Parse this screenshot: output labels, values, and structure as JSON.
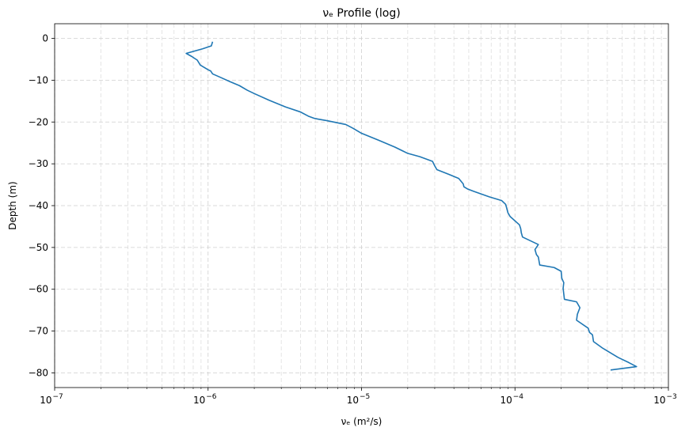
{
  "chart_data": {
    "type": "line",
    "title": "νₑ Profile (log)",
    "xlabel": "νₑ (m²/s)",
    "ylabel": "Depth (m)",
    "x_scale": "log",
    "xlim": [
      1e-07,
      0.001
    ],
    "ylim": [
      -83.5,
      3.5
    ],
    "x_ticks": [
      1e-07,
      1e-06,
      1e-05,
      0.0001,
      0.001
    ],
    "x_tick_labels": [
      {
        "base": "10",
        "exp": "−7"
      },
      {
        "base": "10",
        "exp": "−6"
      },
      {
        "base": "10",
        "exp": "−5"
      },
      {
        "base": "10",
        "exp": "−4"
      },
      {
        "base": "10",
        "exp": "−3"
      }
    ],
    "y_ticks": [
      0,
      -10,
      -20,
      -30,
      -40,
      -50,
      -60,
      -70,
      -80
    ],
    "y_tick_labels": [
      "0",
      "−10",
      "−20",
      "−30",
      "−40",
      "−50",
      "−60",
      "−70",
      "−80"
    ],
    "grid": true,
    "line_color": "#1f77b4",
    "series": [
      {
        "x": [
          1.07e-06,
          1.05e-06,
          9.2e-07,
          7.2e-07,
          7.8e-07,
          8.5e-07,
          8.9e-07,
          1e-06,
          1.04e-06,
          1.07e-06,
          1.2e-06,
          1.38e-06,
          1.6e-06,
          1.8e-06,
          2e-06,
          2.5e-06,
          3.2e-06,
          4e-06,
          4.5e-06,
          4.9e-06,
          5.2e-06,
          6e-06,
          7.9e-06,
          8.8e-06,
          1e-05,
          1.3e-05,
          1.65e-05,
          2e-05,
          2.4e-05,
          2.9e-05,
          3e-05,
          3.1e-05,
          3.7e-05,
          4.3e-05,
          4.6e-05,
          4.65e-05,
          4.9e-05,
          5.4e-05,
          6.8e-05,
          8.2e-05,
          8.7e-05,
          9e-05,
          9.3e-05,
          0.000107,
          0.000109,
          0.00011,
          0.000112,
          0.000142,
          0.000135,
          0.000138,
          0.000142,
          0.000145,
          0.00018,
          0.0002,
          0.000202,
          0.000208,
          0.000206,
          0.00021,
          0.000252,
          0.000265,
          0.000255,
          0.000252,
          0.0003,
          0.000306,
          0.00032,
          0.000325,
          0.00037,
          0.00047,
          0.00055,
          0.00062,
          0.00042
        ],
        "y": [
          -0.8,
          -1.8,
          -2.5,
          -3.6,
          -4.3,
          -5.2,
          -6.4,
          -7.5,
          -7.8,
          -8.5,
          -9.3,
          -10.3,
          -11.3,
          -12.4,
          -13.2,
          -14.8,
          -16.4,
          -17.6,
          -18.6,
          -19.1,
          -19.3,
          -19.7,
          -20.6,
          -21.5,
          -22.7,
          -24.4,
          -26.0,
          -27.5,
          -28.3,
          -29.4,
          -30.5,
          -31.4,
          -32.5,
          -33.5,
          -34.8,
          -35.5,
          -36.0,
          -36.6,
          -37.9,
          -38.8,
          -39.7,
          -41.7,
          -42.6,
          -44.6,
          -45.5,
          -46.5,
          -47.5,
          -49.3,
          -50.5,
          -51.7,
          -52.3,
          -54.2,
          -54.8,
          -55.7,
          -57.4,
          -58.4,
          -59.8,
          -62.4,
          -63.0,
          -64.4,
          -66.0,
          -67.4,
          -69.3,
          -70.3,
          -70.9,
          -72.5,
          -74.0,
          -76.3,
          -77.5,
          -78.5,
          -79.3
        ]
      }
    ]
  }
}
